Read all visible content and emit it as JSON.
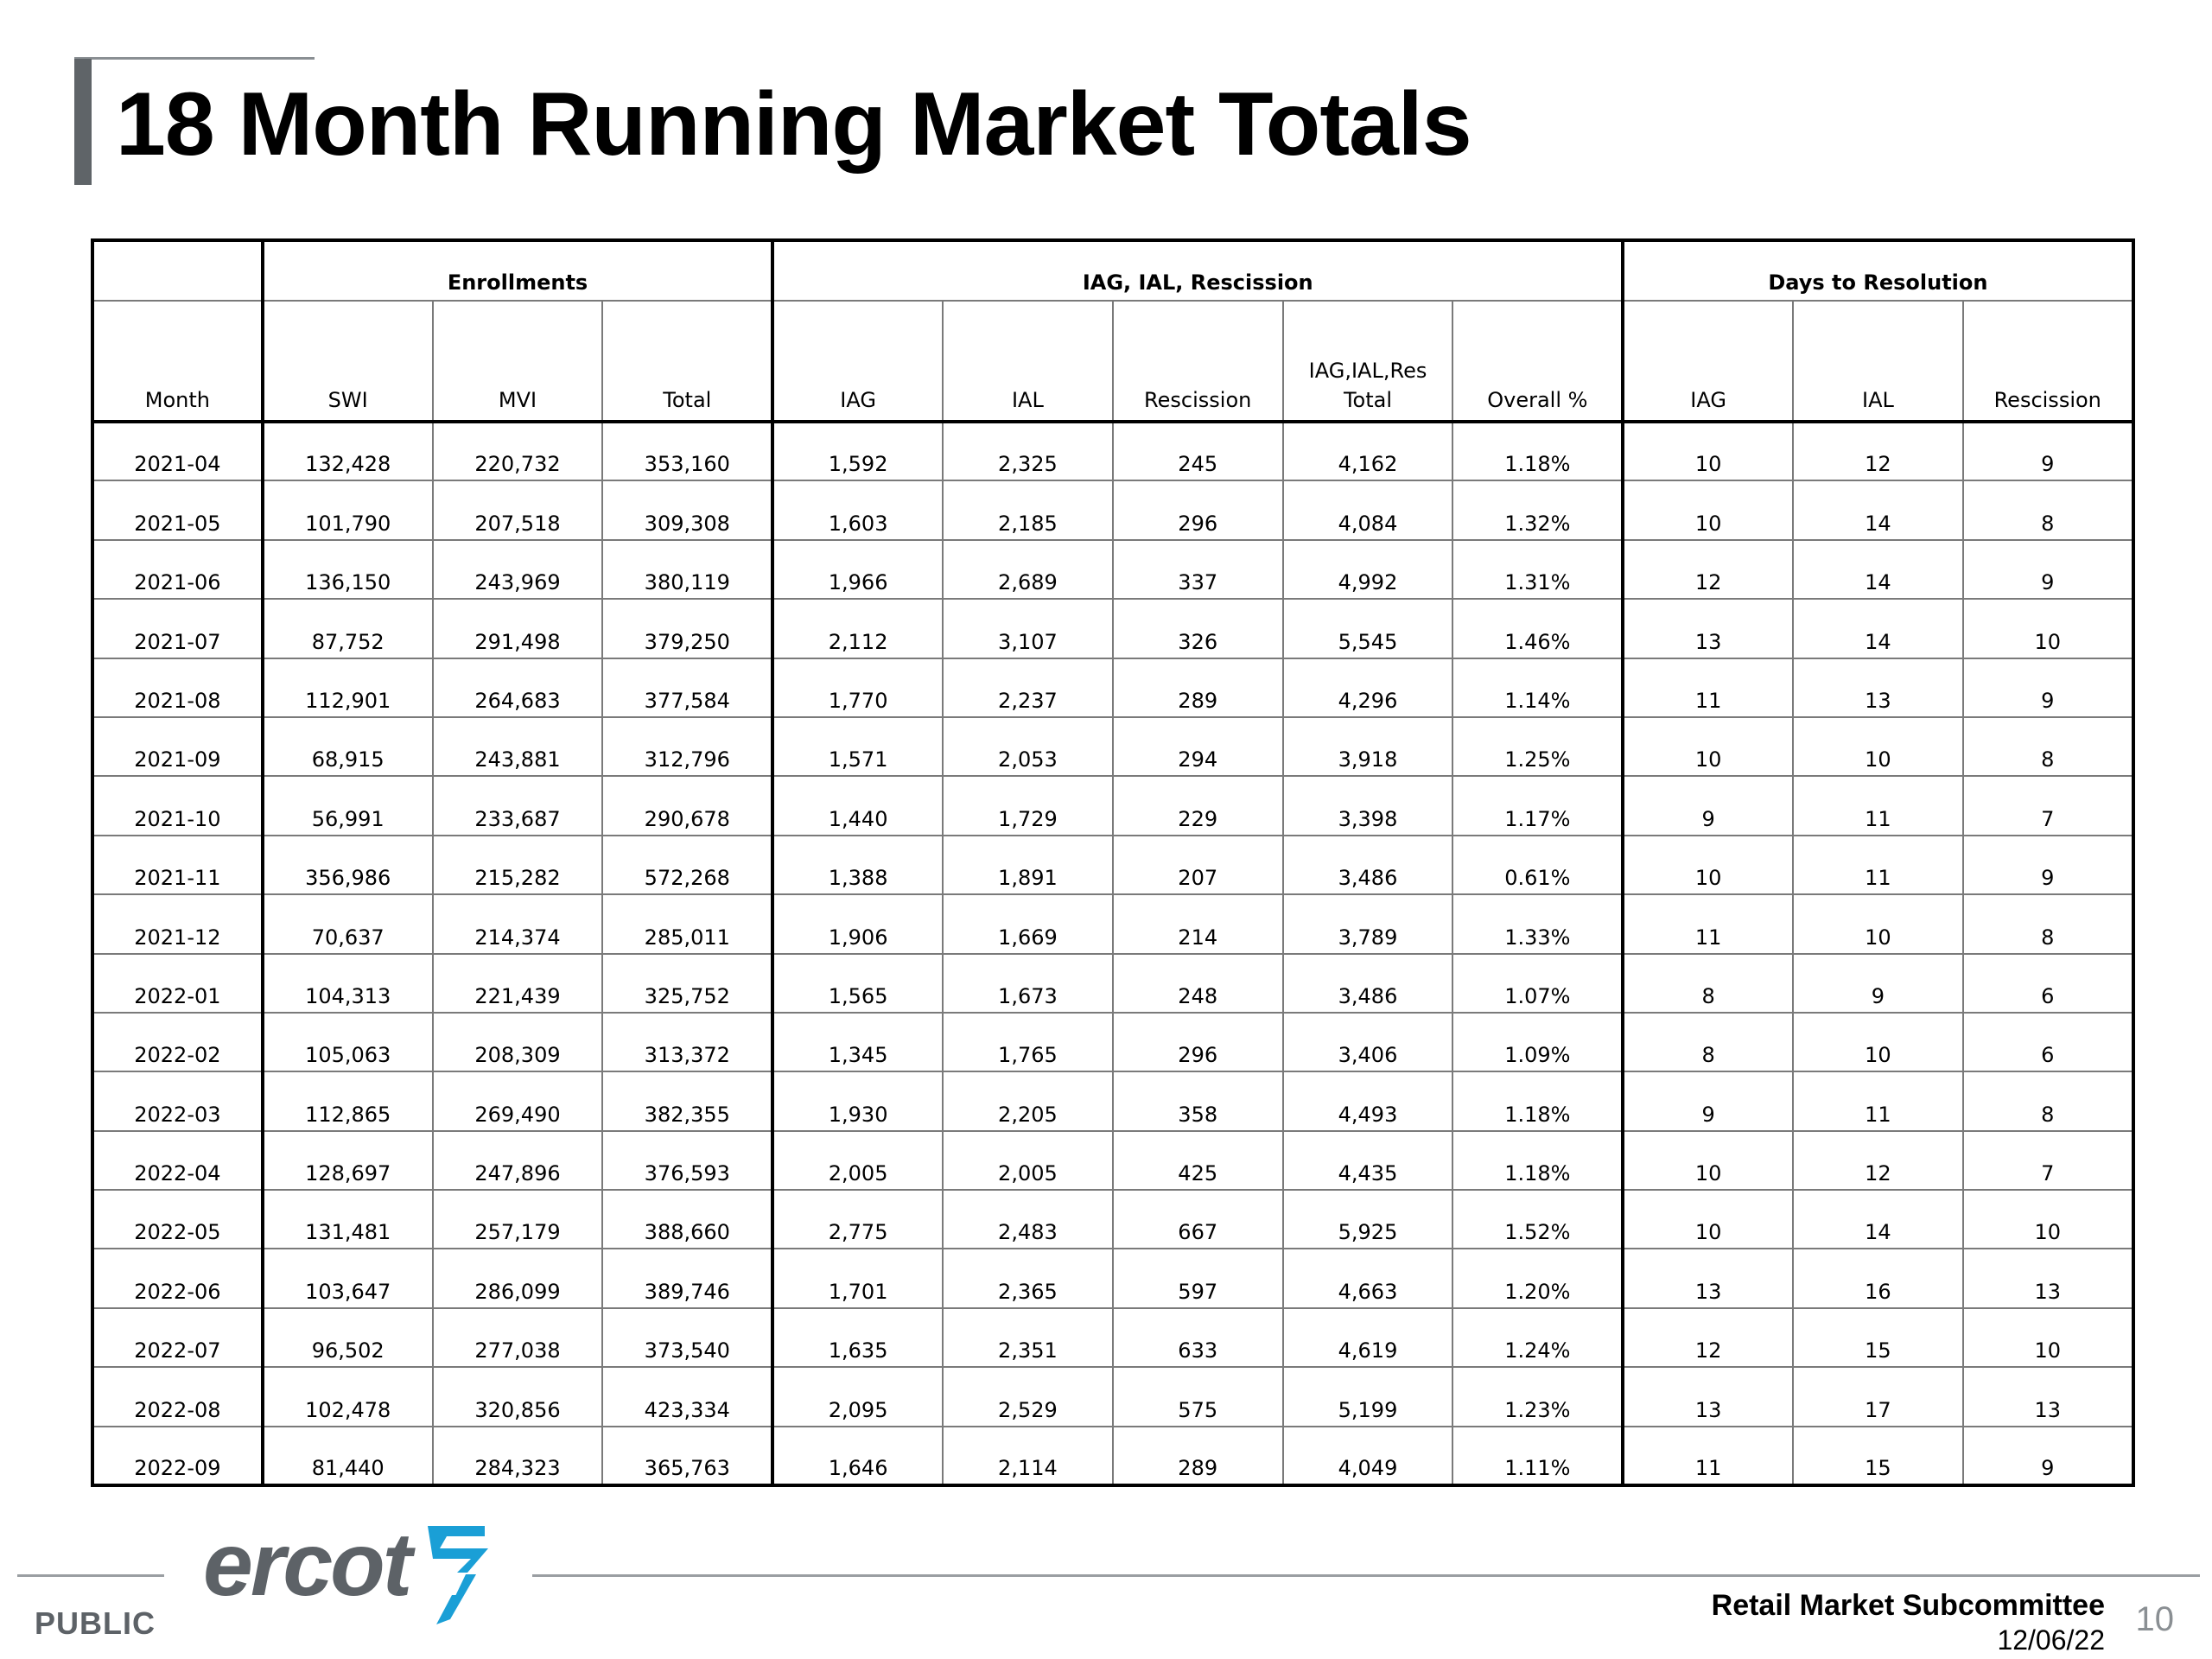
{
  "page": {
    "title": "18 Month Running Market Totals"
  },
  "table": {
    "groups": {
      "enrollments": "Enrollments",
      "iag_ial_rescission": "IAG, IAL, Rescission",
      "days_to_resolution": "Days to Resolution"
    },
    "columns": {
      "month": "Month",
      "swi": "SWI",
      "mvi": "MVI",
      "total": "Total",
      "iag": "IAG",
      "ial": "IAL",
      "rescission": "Rescission",
      "res_total_line1": "IAG,IAL,Res",
      "res_total_line2": "Total",
      "overall_pct": "Overall %",
      "days_iag": "IAG",
      "days_ial": "IAL",
      "days_rescission": "Rescission"
    },
    "rows": [
      [
        "2021-04",
        "132,428",
        "220,732",
        "353,160",
        "1,592",
        "2,325",
        "245",
        "4,162",
        "1.18%",
        "10",
        "12",
        "9"
      ],
      [
        "2021-05",
        "101,790",
        "207,518",
        "309,308",
        "1,603",
        "2,185",
        "296",
        "4,084",
        "1.32%",
        "10",
        "14",
        "8"
      ],
      [
        "2021-06",
        "136,150",
        "243,969",
        "380,119",
        "1,966",
        "2,689",
        "337",
        "4,992",
        "1.31%",
        "12",
        "14",
        "9"
      ],
      [
        "2021-07",
        "87,752",
        "291,498",
        "379,250",
        "2,112",
        "3,107",
        "326",
        "5,545",
        "1.46%",
        "13",
        "14",
        "10"
      ],
      [
        "2021-08",
        "112,901",
        "264,683",
        "377,584",
        "1,770",
        "2,237",
        "289",
        "4,296",
        "1.14%",
        "11",
        "13",
        "9"
      ],
      [
        "2021-09",
        "68,915",
        "243,881",
        "312,796",
        "1,571",
        "2,053",
        "294",
        "3,918",
        "1.25%",
        "10",
        "10",
        "8"
      ],
      [
        "2021-10",
        "56,991",
        "233,687",
        "290,678",
        "1,440",
        "1,729",
        "229",
        "3,398",
        "1.17%",
        "9",
        "11",
        "7"
      ],
      [
        "2021-11",
        "356,986",
        "215,282",
        "572,268",
        "1,388",
        "1,891",
        "207",
        "3,486",
        "0.61%",
        "10",
        "11",
        "9"
      ],
      [
        "2021-12",
        "70,637",
        "214,374",
        "285,011",
        "1,906",
        "1,669",
        "214",
        "3,789",
        "1.33%",
        "11",
        "10",
        "8"
      ],
      [
        "2022-01",
        "104,313",
        "221,439",
        "325,752",
        "1,565",
        "1,673",
        "248",
        "3,486",
        "1.07%",
        "8",
        "9",
        "6"
      ],
      [
        "2022-02",
        "105,063",
        "208,309",
        "313,372",
        "1,345",
        "1,765",
        "296",
        "3,406",
        "1.09%",
        "8",
        "10",
        "6"
      ],
      [
        "2022-03",
        "112,865",
        "269,490",
        "382,355",
        "1,930",
        "2,205",
        "358",
        "4,493",
        "1.18%",
        "9",
        "11",
        "8"
      ],
      [
        "2022-04",
        "128,697",
        "247,896",
        "376,593",
        "2,005",
        "2,005",
        "425",
        "4,435",
        "1.18%",
        "10",
        "12",
        "7"
      ],
      [
        "2022-05",
        "131,481",
        "257,179",
        "388,660",
        "2,775",
        "2,483",
        "667",
        "5,925",
        "1.52%",
        "10",
        "14",
        "10"
      ],
      [
        "2022-06",
        "103,647",
        "286,099",
        "389,746",
        "1,701",
        "2,365",
        "597",
        "4,663",
        "1.20%",
        "13",
        "16",
        "13"
      ],
      [
        "2022-07",
        "96,502",
        "277,038",
        "373,540",
        "1,635",
        "2,351",
        "633",
        "4,619",
        "1.24%",
        "12",
        "15",
        "10"
      ],
      [
        "2022-08",
        "102,478",
        "320,856",
        "423,334",
        "2,095",
        "2,529",
        "575",
        "5,199",
        "1.23%",
        "13",
        "17",
        "13"
      ],
      [
        "2022-09",
        "81,440",
        "284,323",
        "365,763",
        "1,646",
        "2,114",
        "289",
        "4,049",
        "1.11%",
        "11",
        "15",
        "9"
      ]
    ]
  },
  "footer": {
    "logo_text": "ercot",
    "classification": "PUBLIC",
    "committee": "Retail Market Subcommittee",
    "date": "12/06/22",
    "page_number": "10"
  },
  "colors": {
    "title_accent": "#5f6468",
    "logo_gray": "#5d6267",
    "logo_blue": "#1a9fd6"
  }
}
